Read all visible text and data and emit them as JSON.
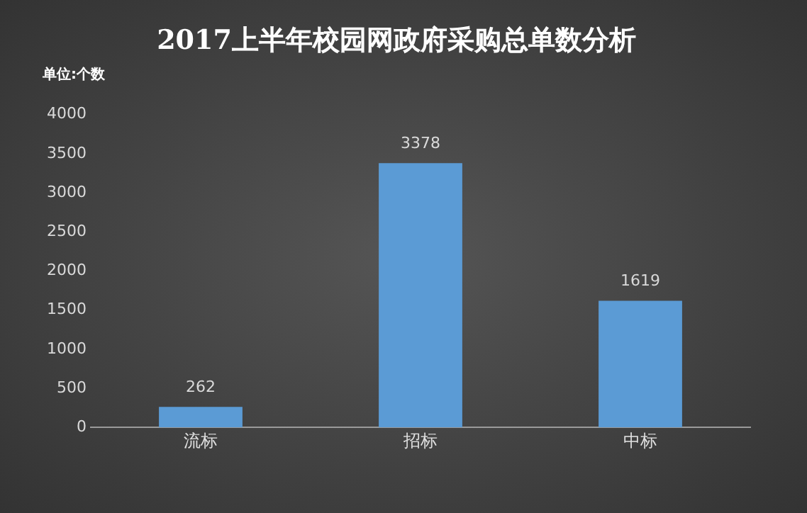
{
  "chart_data": {
    "type": "bar",
    "title": "2017上半年校园网政府采购总单数分析",
    "ylabel": "单位:个数",
    "categories": [
      "流标",
      "招标",
      "中标"
    ],
    "values": [
      262,
      3378,
      1619
    ],
    "color": "#5b9bd5",
    "ylim": [
      0,
      4000
    ],
    "yticks": [
      0,
      500,
      1000,
      1500,
      2000,
      2500,
      3000,
      3500,
      4000
    ],
    "grid": false,
    "data_labels": true
  }
}
